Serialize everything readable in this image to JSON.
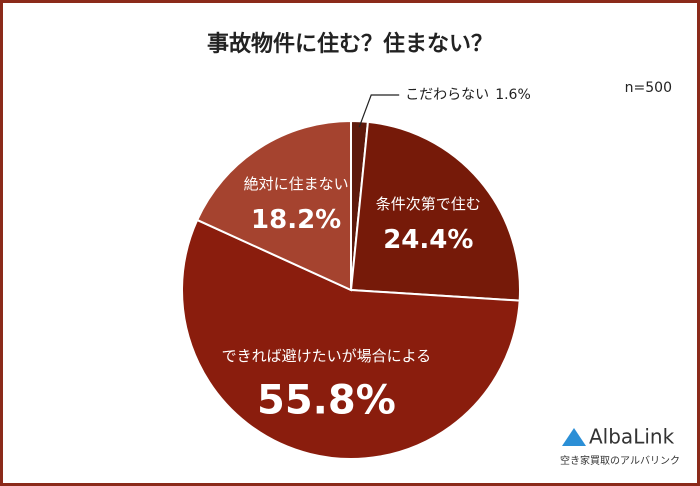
{
  "chart_data": {
    "type": "pie",
    "title": "事故物件に住む？住まない？",
    "note": "n=500",
    "categories": [
      "こだわらない",
      "条件次第で住む",
      "できれば避けたいが場合による",
      "絶対に住まない"
    ],
    "values": [
      1.6,
      24.4,
      55.8,
      18.2
    ],
    "value_labels": [
      "1.6%",
      "24.4%",
      "55.8%",
      "18.2%"
    ],
    "colors": [
      "#5e1a0c",
      "#761a09",
      "#8a1d0d",
      "#a5432f"
    ]
  },
  "branding": {
    "name": "AlbaLink",
    "tagline": "空き家買取のアルバリンク"
  }
}
